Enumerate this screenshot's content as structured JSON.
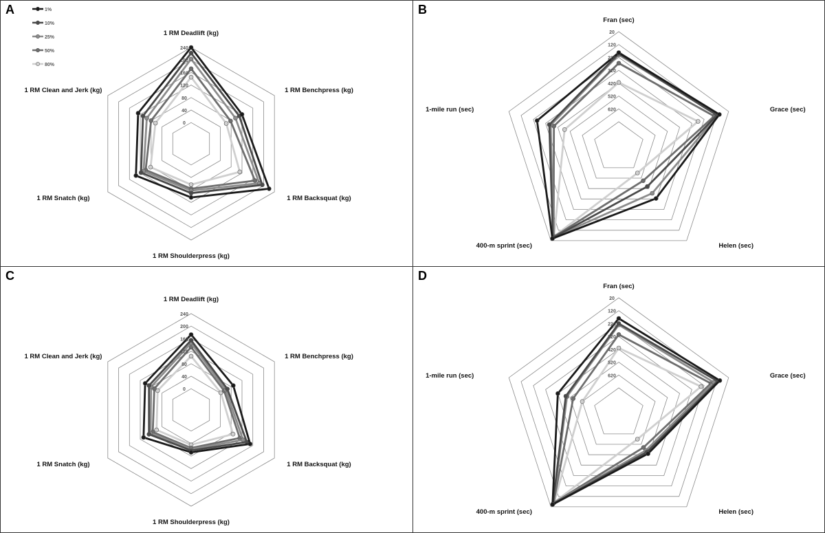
{
  "chart_data": [
    {
      "panel": "A",
      "type": "radar",
      "axes": [
        "1 RM Deadlift (kg)",
        "1 RM Benchpress (kg)",
        "1 RM Backsquat (kg)",
        "1 RM Shoulderpress (kg)",
        "1 RM Snatch (kg)",
        "1 RM Clean and Jerk (kg)"
      ],
      "ticks": [
        "0",
        "40",
        "80",
        "120",
        "160",
        "200",
        "240"
      ],
      "range": [
        0,
        240
      ],
      "reversed": false,
      "legend": [
        "1%",
        "10%",
        "25%",
        "50%",
        "80%"
      ],
      "series": [
        {
          "name": "1%",
          "color": "#1a1a1a",
          "values": [
            240,
            120,
            220,
            104,
            136,
            128
          ]
        },
        {
          "name": "10%",
          "color": "#4a4a4a",
          "values": [
            222,
            110,
            195,
            90,
            117,
            110
          ]
        },
        {
          "name": "25%",
          "color": "#8c8c8c",
          "values": [
            203,
            96,
            184,
            82,
            108,
            96
          ]
        },
        {
          "name": "50%",
          "color": "#6e6e6e",
          "values": [
            172,
            78,
            168,
            76,
            100,
            80
          ]
        },
        {
          "name": "80%",
          "color": "#cfcfcf",
          "values": [
            145,
            62,
            112,
            63,
            82,
            64
          ]
        }
      ]
    },
    {
      "panel": "B",
      "type": "radar",
      "axes": [
        "Fran (sec)",
        "Grace (sec)",
        "Helen (sec)",
        "400-m sprint (sec)",
        "1-mile run (sec)"
      ],
      "ticks": [
        "20",
        "120",
        "220",
        "320",
        "420",
        "520",
        "620"
      ],
      "range": [
        20,
        720
      ],
      "reversed": true,
      "series": [
        {
          "name": "1%",
          "color": "#1a1a1a",
          "values": [
            183,
            95,
            425,
            40,
            250
          ]
        },
        {
          "name": "10%",
          "color": "#4a4a4a",
          "values": [
            190,
            115,
            540,
            48,
            350
          ]
        },
        {
          "name": "25%",
          "color": "#8c8c8c",
          "values": [
            200,
            108,
            475,
            52,
            362
          ]
        },
        {
          "name": "50%",
          "color": "#6e6e6e",
          "values": [
            265,
            138,
            595,
            56,
            388
          ]
        },
        {
          "name": "80%",
          "color": "#cfcfcf",
          "values": [
            415,
            270,
            670,
            62,
            475
          ]
        }
      ]
    },
    {
      "panel": "C",
      "type": "radar",
      "axes": [
        "1 RM Deadlift (kg)",
        "1 RM Benchpress (kg)",
        "1 RM Backsquat (kg)",
        "1 RM Shoulderpress (kg)",
        "1 RM Snatch (kg)",
        "1 RM Clean and Jerk (kg)"
      ],
      "ticks": [
        "0",
        "40",
        "80",
        "120",
        "160",
        "200",
        "240"
      ],
      "range": [
        0,
        240
      ],
      "reversed": false,
      "series": [
        {
          "name": "1%",
          "color": "#1a1a1a",
          "values": [
            173,
            88,
            150,
            68,
            108,
            102
          ]
        },
        {
          "name": "10%",
          "color": "#4a4a4a",
          "values": [
            155,
            66,
            138,
            62,
            88,
            88
          ]
        },
        {
          "name": "25%",
          "color": "#8c8c8c",
          "values": [
            146,
            60,
            124,
            58,
            82,
            80
          ]
        },
        {
          "name": "50%",
          "color": "#6e6e6e",
          "values": [
            133,
            54,
            112,
            54,
            74,
            68
          ]
        },
        {
          "name": "80%",
          "color": "#cfcfcf",
          "values": [
            104,
            42,
            87,
            44,
            60,
            56
          ]
        }
      ]
    },
    {
      "panel": "D",
      "type": "radar",
      "axes": [
        "Fran (sec)",
        "Grace (sec)",
        "Helen (sec)",
        "400-m sprint (sec)",
        "1-mile run (sec)"
      ],
      "ticks": [
        "20",
        "120",
        "220",
        "320",
        "420",
        "520",
        "620"
      ],
      "range": [
        20,
        720
      ],
      "reversed": true,
      "series": [
        {
          "name": "1%",
          "color": "#1a1a1a",
          "values": [
            180,
            92,
            530,
            42,
            420
          ]
        },
        {
          "name": "10%",
          "color": "#4a4a4a",
          "values": [
            220,
            110,
            545,
            48,
            485
          ]
        },
        {
          "name": "25%",
          "color": "#8c8c8c",
          "values": [
            230,
            140,
            560,
            52,
            495
          ]
        },
        {
          "name": "50%",
          "color": "#6e6e6e",
          "values": [
            305,
            165,
            590,
            56,
            545
          ]
        },
        {
          "name": "80%",
          "color": "#cfcfcf",
          "values": [
            410,
            245,
            670,
            64,
            620
          ]
        }
      ]
    }
  ]
}
